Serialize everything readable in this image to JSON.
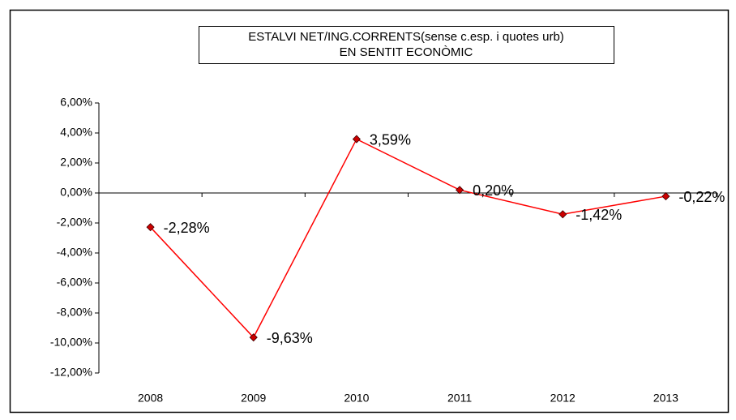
{
  "chart_data": {
    "type": "line",
    "title": [
      "ESTALVI NET/ING.CORRENTS(sense c.esp. i quotes urb)",
      "EN SENTIT ECONÒMIC"
    ],
    "categories": [
      "2008",
      "2009",
      "2010",
      "2011",
      "2012",
      "2013"
    ],
    "values": [
      -2.28,
      -9.63,
      3.59,
      0.2,
      -1.42,
      -0.22
    ],
    "value_labels": [
      "-2,28%",
      "-9,63%",
      "3,59%",
      "0,20%",
      "-1,42%",
      "-0,22%"
    ],
    "color": "#ff0000",
    "marker_color": "#cc0000",
    "ylim": [
      -12,
      6
    ],
    "yticks": [
      {
        "value": -12,
        "label": "-12,00%"
      },
      {
        "value": -10,
        "label": "-10,00%"
      },
      {
        "value": -8,
        "label": "-8,00%"
      },
      {
        "value": -6,
        "label": "-6,00%"
      },
      {
        "value": -4,
        "label": "-4,00%"
      },
      {
        "value": -2,
        "label": "-2,00%"
      },
      {
        "value": 0,
        "label": "0,00%"
      },
      {
        "value": 2,
        "label": "2,00%"
      },
      {
        "value": 4,
        "label": "4,00%"
      },
      {
        "value": 6,
        "label": "6,00%"
      }
    ],
    "grid": false
  }
}
